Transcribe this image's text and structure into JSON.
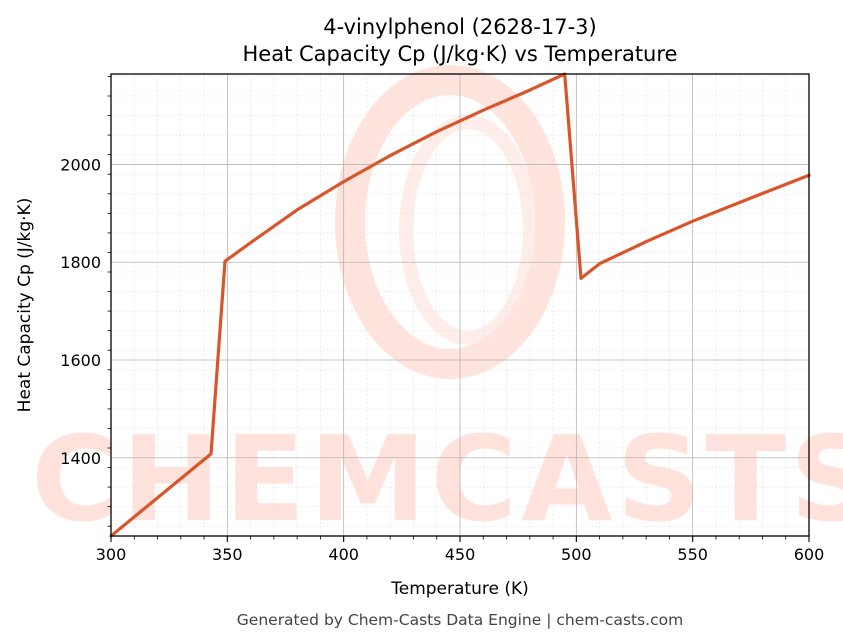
{
  "chart_data": {
    "type": "line",
    "title": "4-vinylphenol (2628-17-3)",
    "subtitle": "Heat Capacity Cp (J/kg·K) vs Temperature",
    "xlabel": "Temperature (K)",
    "ylabel": "Heat Capacity Cp (J/kg·K)",
    "xlim": [
      300,
      600
    ],
    "ylim": [
      1240,
      2185
    ],
    "x_ticks": [
      300,
      350,
      400,
      450,
      500,
      550,
      600
    ],
    "y_ticks": [
      1400,
      1600,
      1800,
      2000
    ],
    "grid": true,
    "series": [
      {
        "color": "#d9552b",
        "x": [
          300,
          343,
          349,
          360,
          380,
          400,
          420,
          440,
          460,
          480,
          495,
          502,
          510,
          530,
          550,
          570,
          600
        ],
        "y": [
          1240,
          1408,
          1802,
          1840,
          1907,
          1965,
          2018,
          2067,
          2111,
          2152,
          2185,
          1767,
          1797,
          1842,
          1884,
          1922,
          1978
        ]
      }
    ],
    "watermark": "CHEMCASTS"
  },
  "footer": "Generated by Chem-Casts Data Engine | chem-casts.com"
}
